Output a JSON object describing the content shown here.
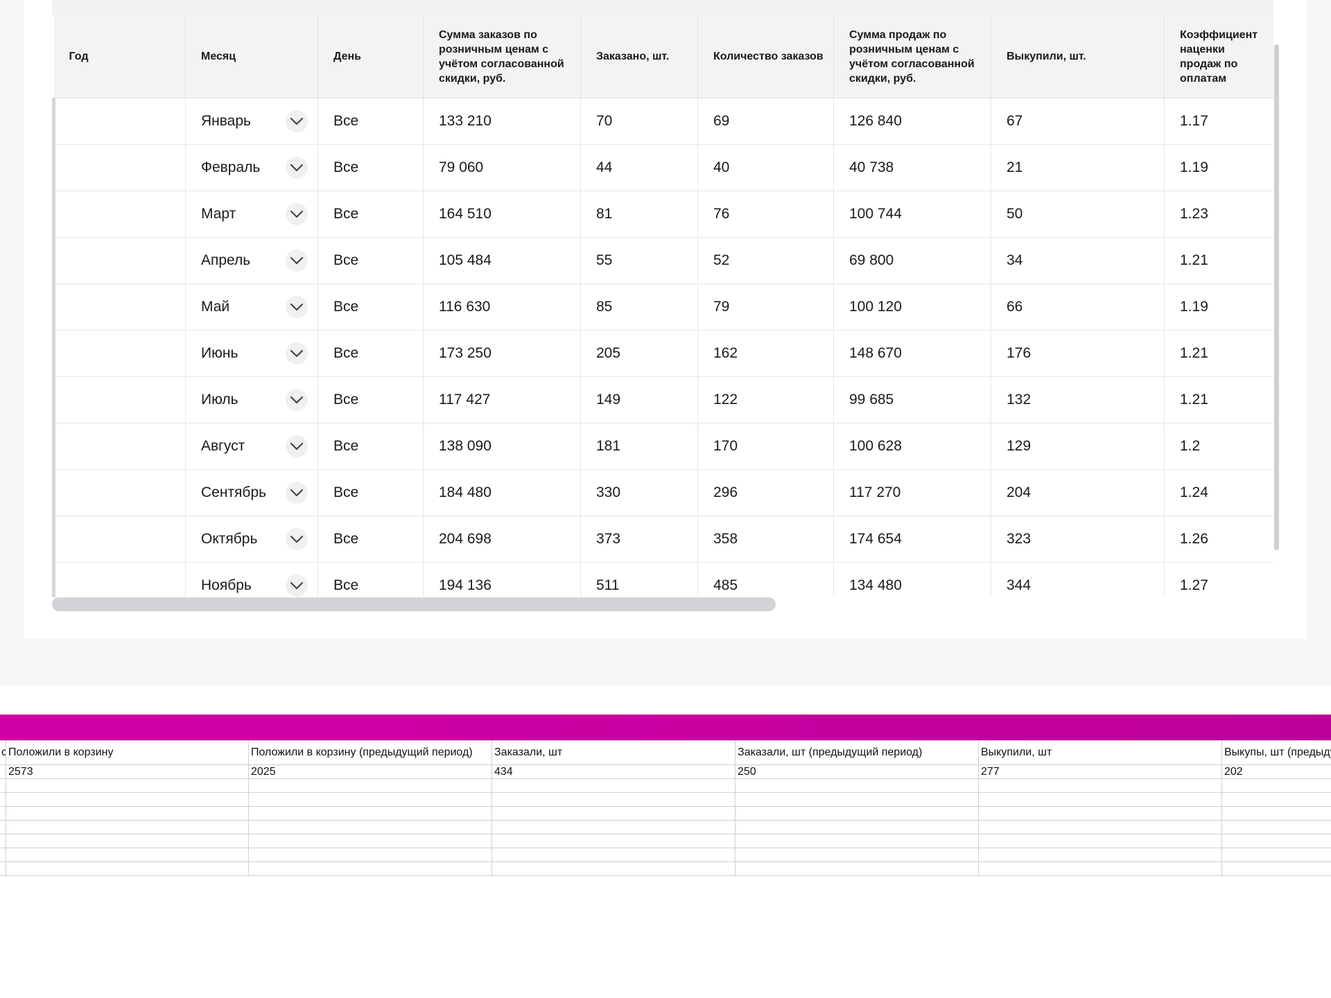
{
  "main_table": {
    "headers": [
      "Год",
      "Месяц",
      "День",
      "Сумма заказов по розничным ценам с учётом согласованной скидки, руб.",
      "Заказано, шт.",
      "Количество заказов",
      "Сумма продаж по розничным ценам с учётом согласованной скидки, руб.",
      "Выкупили, шт.",
      "Коэффициент наценки продаж по оплатам"
    ],
    "rows": [
      {
        "year": "",
        "month": "Январь",
        "day": "Все",
        "orders_sum": "133 210",
        "ordered": "70",
        "orders_count": "69",
        "sales_sum": "126 840",
        "bought": "67",
        "markup": "1.17"
      },
      {
        "year": "",
        "month": "Февраль",
        "day": "Все",
        "orders_sum": "79 060",
        "ordered": "44",
        "orders_count": "40",
        "sales_sum": "40 738",
        "bought": "21",
        "markup": "1.19"
      },
      {
        "year": "",
        "month": "Март",
        "day": "Все",
        "orders_sum": "164 510",
        "ordered": "81",
        "orders_count": "76",
        "sales_sum": "100 744",
        "bought": "50",
        "markup": "1.23"
      },
      {
        "year": "",
        "month": "Апрель",
        "day": "Все",
        "orders_sum": "105 484",
        "ordered": "55",
        "orders_count": "52",
        "sales_sum": "69 800",
        "bought": "34",
        "markup": "1.21"
      },
      {
        "year": "",
        "month": "Май",
        "day": "Все",
        "orders_sum": "116 630",
        "ordered": "85",
        "orders_count": "79",
        "sales_sum": "100 120",
        "bought": "66",
        "markup": "1.19"
      },
      {
        "year": "",
        "month": "Июнь",
        "day": "Все",
        "orders_sum": "173 250",
        "ordered": "205",
        "orders_count": "162",
        "sales_sum": "148 670",
        "bought": "176",
        "markup": "1.21"
      },
      {
        "year": "",
        "month": "Июль",
        "day": "Все",
        "orders_sum": "117 427",
        "ordered": "149",
        "orders_count": "122",
        "sales_sum": "99 685",
        "bought": "132",
        "markup": "1.21"
      },
      {
        "year": "",
        "month": "Август",
        "day": "Все",
        "orders_sum": "138 090",
        "ordered": "181",
        "orders_count": "170",
        "sales_sum": "100 628",
        "bought": "129",
        "markup": "1.2"
      },
      {
        "year": "",
        "month": "Сентябрь",
        "day": "Все",
        "orders_sum": "184 480",
        "ordered": "330",
        "orders_count": "296",
        "sales_sum": "117 270",
        "bought": "204",
        "markup": "1.24"
      },
      {
        "year": "",
        "month": "Октябрь",
        "day": "Все",
        "orders_sum": "204 698",
        "ordered": "373",
        "orders_count": "358",
        "sales_sum": "174 654",
        "bought": "323",
        "markup": "1.26"
      },
      {
        "year": "",
        "month": "Ноябрь",
        "day": "Все",
        "orders_sum": "194 136",
        "ordered": "511",
        "orders_count": "485",
        "sales_sum": "134 480",
        "bought": "344",
        "markup": "1.27"
      }
    ]
  },
  "sheet": {
    "headers": [
      "с",
      "Положили в корзину",
      "Положили в корзину (предыдущий период)",
      "Заказали, шт",
      "Заказали, шт (предыдущий период)",
      "Выкупили, шт",
      "Выкупы, шт (предыдущий период)"
    ],
    "values": [
      "",
      "2573",
      "2025",
      "434",
      "250",
      "277",
      "202"
    ],
    "empty_rows": 7
  },
  "colors": {
    "accent_band": "#c800a0",
    "header_bg": "#f3f3f5",
    "grid_line": "#e6e6ea"
  },
  "icons": {
    "month_dropdown": "chevron-down-icon"
  }
}
